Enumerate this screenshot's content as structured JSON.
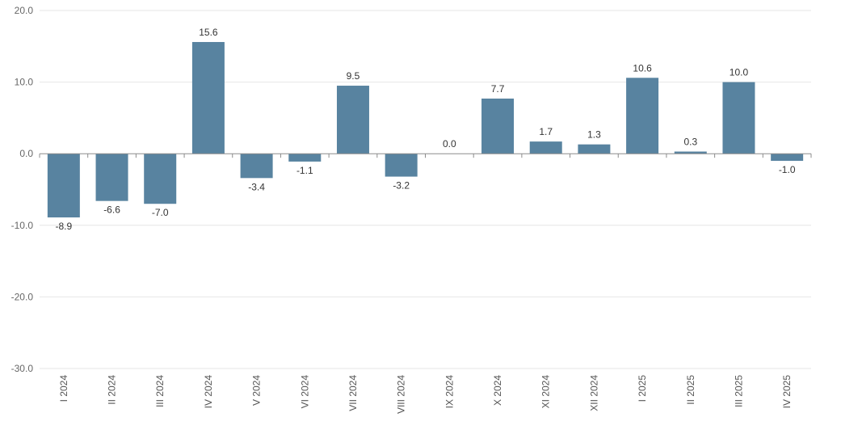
{
  "chart_data": {
    "type": "bar",
    "categories": [
      "I 2024",
      "II 2024",
      "III 2024",
      "IV 2024",
      "V 2024",
      "VI 2024",
      "VII 2024",
      "VIII 2024",
      "IX 2024",
      "X 2024",
      "XI 2024",
      "XII 2024",
      "I 2025",
      "II 2025",
      "III 2025",
      "IV 2025"
    ],
    "values": [
      -8.9,
      -6.6,
      -7.0,
      15.6,
      -3.4,
      -1.1,
      9.5,
      -3.2,
      0.0,
      7.7,
      1.7,
      1.3,
      10.6,
      0.3,
      10.0,
      -1.0
    ],
    "data_labels": [
      "-8.9",
      "-6.6",
      "-7.0",
      "15.6",
      "-3.4",
      "-1.1",
      "9.5",
      "-3.2",
      "0.0",
      "7.7",
      "1.7",
      "1.3",
      "10.6",
      "0.3",
      "10.0",
      "-1.0"
    ],
    "y_ticks": [
      20,
      10,
      0,
      -10,
      -20,
      -30
    ],
    "y_tick_labels": [
      "20.0",
      "10.0",
      "0.0",
      "-10.0",
      "-20.0",
      "-30.0"
    ],
    "ylim": [
      -30,
      20
    ],
    "grid": true,
    "legend": "none",
    "bar_color": "#5883a0"
  }
}
